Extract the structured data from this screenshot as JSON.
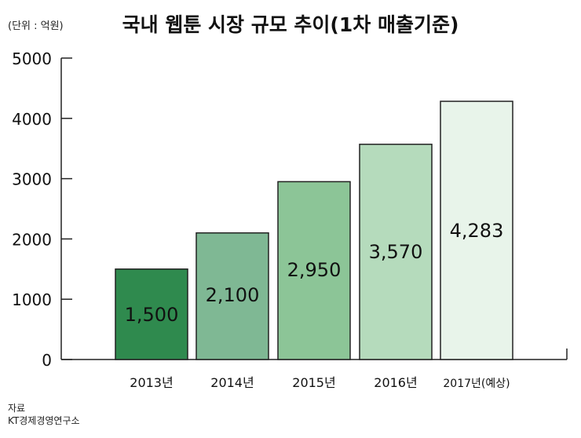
{
  "unit_label": "(단위 : 억원)",
  "source": {
    "label": "자료",
    "org": "KT경제경영연구소"
  },
  "chart_data": {
    "type": "bar",
    "title": "국내 웹툰 시장 규모 추이(1차 매출기준)",
    "categories": [
      "2013년",
      "2014년",
      "2015년",
      "2016년",
      "2017년(예상)"
    ],
    "values": [
      1500,
      2100,
      2950,
      3570,
      4283
    ],
    "data_labels": [
      "1,500",
      "2,100",
      "2,950",
      "3,570",
      "4,283"
    ],
    "ylim": [
      0,
      5000
    ],
    "yticks": [
      0,
      1000,
      2000,
      3000,
      4000,
      5000
    ],
    "ytick_labels": [
      "0",
      "1000",
      "2000",
      "3000",
      "4000",
      "5000"
    ],
    "grid": false,
    "colors": [
      "#2f8a4e",
      "#7fb894",
      "#8cc597",
      "#b5dbbc",
      "#e8f4ea"
    ]
  }
}
